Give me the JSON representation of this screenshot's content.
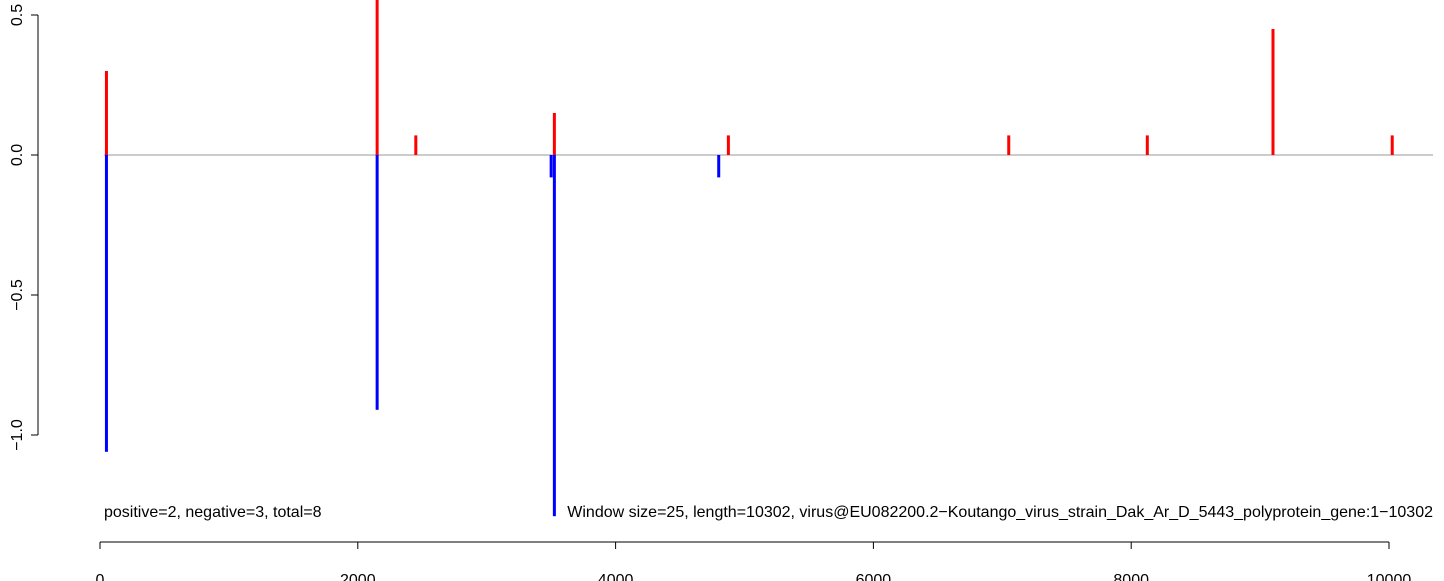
{
  "chart_data": {
    "type": "bar",
    "subtype": "signed-spike",
    "annotation": "positive=2, negative=3, total=8",
    "window_label": "Window size=25, length=10302, virus@EU082200.2−Koutango_virus_strain_Dak_Ar_D_5443_polyprotein_gene:1−10302",
    "xlim": [
      0,
      10302
    ],
    "ylim": [
      -1.3,
      0.55
    ],
    "grid": false,
    "legend": "none",
    "x_ticks": [
      0,
      2000,
      4000,
      6000,
      8000,
      10000
    ],
    "x_tick_labels": [
      "0",
      "2000",
      "4000",
      "6000",
      "8000",
      "10000"
    ],
    "y_ticks": [
      -1.0,
      -0.5,
      0.0,
      0.5
    ],
    "y_tick_labels": [
      "−1.0",
      "−0.5",
      "0.0",
      "0.5"
    ],
    "colors": {
      "positive": "#ff0000",
      "negative": "#0000ff",
      "baseline": "#999999"
    },
    "series": [
      {
        "color": "#ff0000",
        "points": [
          {
            "x": 50,
            "y": 0.3
          },
          {
            "x": 2150,
            "y": 0.56
          },
          {
            "x": 2450,
            "y": 0.07
          },
          {
            "x": 3525,
            "y": 0.15
          },
          {
            "x": 4875,
            "y": 0.07
          },
          {
            "x": 7050,
            "y": 0.07
          },
          {
            "x": 8125,
            "y": 0.07
          },
          {
            "x": 9100,
            "y": 0.45
          },
          {
            "x": 10025,
            "y": 0.07
          }
        ]
      },
      {
        "color": "#0000ff",
        "points": [
          {
            "x": 50,
            "y": -1.06
          },
          {
            "x": 2150,
            "y": -0.91
          },
          {
            "x": 3500,
            "y": -0.08
          },
          {
            "x": 3525,
            "y": -1.29
          },
          {
            "x": 4800,
            "y": -0.08
          }
        ]
      }
    ]
  }
}
